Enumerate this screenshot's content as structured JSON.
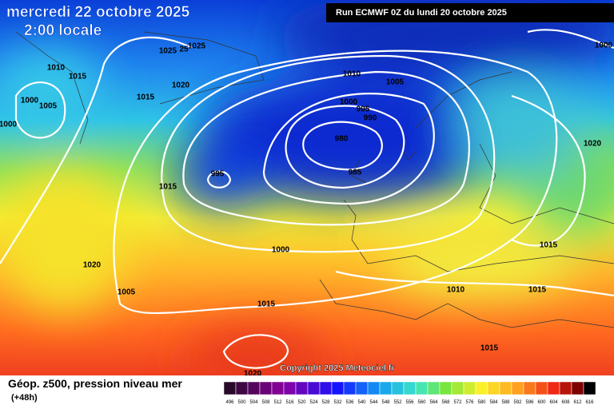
{
  "header": {
    "date": "mercredi 22 octobre 2025",
    "time": "2:00 locale",
    "run": "Run ECMWF 0Z du lundi 20 octobre 2025"
  },
  "copyright": "Copyright 2025 Meteociel.fr",
  "footer": {
    "title": "Géop. z500, pression niveau mer",
    "lead": "(+48h)"
  },
  "isobar_labels": [
    1025,
    25,
    1025,
    1010,
    1015,
    1000,
    1005,
    1015,
    1020,
    1000,
    1010,
    1005,
    1000,
    995,
    990,
    980,
    985,
    995,
    1015,
    1000,
    1020,
    1005,
    1015,
    1020,
    1015,
    1010,
    1015,
    1015,
    1000,
    1020
  ],
  "scale": [
    496,
    500,
    504,
    508,
    512,
    516,
    520,
    524,
    528,
    532,
    536,
    540,
    544,
    548,
    552,
    556,
    560,
    564,
    568,
    572,
    576,
    580,
    584,
    588,
    592,
    596,
    600,
    604,
    608,
    612,
    616
  ]
}
